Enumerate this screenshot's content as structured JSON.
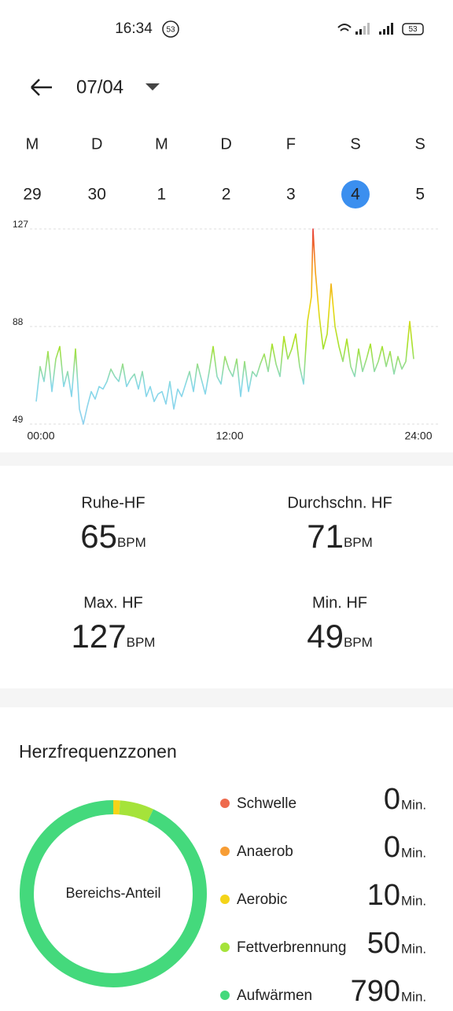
{
  "status_bar": {
    "time": "16:34",
    "badge": "53",
    "battery": "53"
  },
  "header": {
    "date": "07/04"
  },
  "week": [
    {
      "letter": "M",
      "day": "29"
    },
    {
      "letter": "D",
      "day": "30"
    },
    {
      "letter": "M",
      "day": "1"
    },
    {
      "letter": "D",
      "day": "2"
    },
    {
      "letter": "F",
      "day": "3"
    },
    {
      "letter": "S",
      "day": "4",
      "selected": true
    },
    {
      "letter": "S",
      "day": "5"
    }
  ],
  "chart_data": {
    "type": "line",
    "x": [
      0,
      0.25,
      0.5,
      0.75,
      1,
      1.25,
      1.5,
      1.75,
      2,
      2.25,
      2.5,
      2.75,
      3,
      3.25,
      3.5,
      3.75,
      4,
      4.25,
      4.5,
      4.75,
      5,
      5.25,
      5.5,
      5.75,
      6,
      6.25,
      6.5,
      6.75,
      7,
      7.25,
      7.5,
      7.75,
      8,
      8.25,
      8.5,
      8.75,
      9,
      9.25,
      9.5,
      9.75,
      10,
      10.25,
      10.5,
      10.75,
      11,
      11.25,
      11.5,
      11.75,
      12,
      12.25,
      12.5,
      12.75,
      13,
      13.25,
      13.5,
      13.75,
      14,
      14.25,
      14.5,
      14.75,
      15,
      15.25,
      15.5,
      15.75,
      16,
      16.25,
      16.5,
      16.75,
      17,
      17.25,
      17.5,
      17.6,
      17.75,
      18,
      18.25,
      18.5,
      18.75,
      19,
      19.25,
      19.5,
      19.75,
      20,
      20.25,
      20.5,
      20.75,
      21,
      21.25,
      21.5,
      21.75,
      22,
      22.25,
      22.5,
      22.75,
      23,
      23.25,
      23.5,
      23.75,
      24
    ],
    "values": [
      58,
      72,
      66,
      78,
      62,
      75,
      80,
      64,
      70,
      60,
      79,
      55,
      49,
      56,
      62,
      59,
      64,
      63,
      66,
      71,
      68,
      66,
      73,
      64,
      67,
      69,
      63,
      70,
      60,
      64,
      58,
      61,
      62,
      57,
      66,
      55,
      63,
      60,
      65,
      70,
      62,
      73,
      67,
      61,
      70,
      80,
      68,
      65,
      76,
      71,
      68,
      75,
      60,
      74,
      62,
      70,
      68,
      73,
      77,
      70,
      81,
      73,
      68,
      84,
      75,
      79,
      85,
      72,
      65,
      90,
      100,
      127,
      110,
      92,
      79,
      85,
      105,
      88,
      80,
      74,
      83,
      72,
      68,
      79,
      70,
      75,
      81,
      70,
      74,
      80,
      72,
      78,
      69,
      76,
      71,
      74,
      90,
      75
    ],
    "colors": [
      "#e8403a",
      "#f59a1c",
      "#ecd612",
      "#a6e22e",
      "#86d8e8",
      "#8fd2ee"
    ],
    "xlim": [
      0,
      24
    ],
    "xticks": [
      {
        "value": 0,
        "label": "00:00"
      },
      {
        "value": 12,
        "label": "12:00"
      },
      {
        "value": 24,
        "label": "24:00"
      }
    ],
    "ylim": [
      49,
      127
    ],
    "yticks": [
      49,
      88,
      127
    ],
    "grid": true
  },
  "stats": [
    {
      "label": "Ruhe-HF",
      "value": "65",
      "unit": "BPM"
    },
    {
      "label": "Durchschn. HF",
      "value": "71",
      "unit": "BPM"
    },
    {
      "label": "Max. HF",
      "value": "127",
      "unit": "BPM"
    },
    {
      "label": "Min. HF",
      "value": "49",
      "unit": "BPM"
    }
  ],
  "zones": {
    "title": "Herzfrequenzzonen",
    "center_label": "Bereichs-Anteil",
    "items": [
      {
        "name": "Schwelle",
        "value": 0,
        "unit": "Min.",
        "color": "#ee6a4d"
      },
      {
        "name": "Anaerob",
        "value": 0,
        "unit": "Min.",
        "color": "#f79d35"
      },
      {
        "name": "Aerobic",
        "value": 10,
        "unit": "Min.",
        "color": "#f4d418"
      },
      {
        "name": "Fettverbrennung",
        "value": 50,
        "unit": "Min.",
        "color": "#a5e33a"
      },
      {
        "name": "Aufwärmen",
        "value": 790,
        "unit": "Min.",
        "color": "#44d97c"
      }
    ]
  }
}
